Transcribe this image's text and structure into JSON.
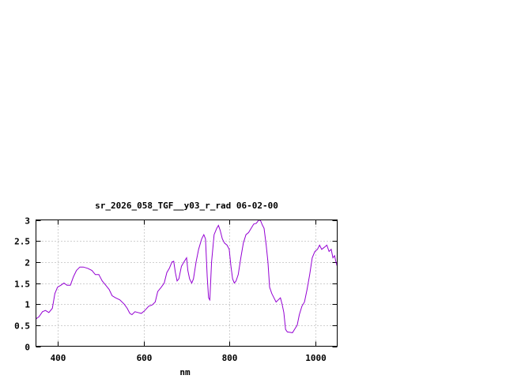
{
  "chart_data": {
    "type": "line",
    "title": "sr_2026_058_TGF__y03_r_rad 06-02-00",
    "xlabel": "nm",
    "ylabel": "",
    "xlim": [
      350,
      1050
    ],
    "ylim": [
      0,
      3
    ],
    "grid": true,
    "legend": "none",
    "x_ticks": [
      400,
      600,
      800,
      1000
    ],
    "x_tick_labels": [
      "400",
      "600",
      "800",
      "1000"
    ],
    "y_ticks": [
      0,
      0.5,
      1,
      1.5,
      2,
      2.5,
      3
    ],
    "y_tick_labels": [
      "0",
      "0.5",
      "1",
      "1.5",
      "2",
      "2.5",
      "3"
    ],
    "series": [
      {
        "name": "",
        "color": "#9400d3",
        "points": [
          [
            350,
            0.65
          ],
          [
            357,
            0.7
          ],
          [
            365,
            0.82
          ],
          [
            372,
            0.85
          ],
          [
            380,
            0.8
          ],
          [
            388,
            0.9
          ],
          [
            394,
            1.25
          ],
          [
            400,
            1.4
          ],
          [
            408,
            1.45
          ],
          [
            415,
            1.5
          ],
          [
            422,
            1.45
          ],
          [
            430,
            1.45
          ],
          [
            437,
            1.65
          ],
          [
            444,
            1.8
          ],
          [
            452,
            1.88
          ],
          [
            460,
            1.88
          ],
          [
            470,
            1.85
          ],
          [
            480,
            1.8
          ],
          [
            488,
            1.7
          ],
          [
            496,
            1.7
          ],
          [
            504,
            1.55
          ],
          [
            512,
            1.45
          ],
          [
            520,
            1.35
          ],
          [
            527,
            1.2
          ],
          [
            535,
            1.15
          ],
          [
            545,
            1.1
          ],
          [
            555,
            1.0
          ],
          [
            562,
            0.9
          ],
          [
            568,
            0.78
          ],
          [
            573,
            0.75
          ],
          [
            580,
            0.82
          ],
          [
            587,
            0.8
          ],
          [
            595,
            0.78
          ],
          [
            603,
            0.85
          ],
          [
            612,
            0.95
          ],
          [
            620,
            0.98
          ],
          [
            627,
            1.05
          ],
          [
            633,
            1.3
          ],
          [
            641,
            1.4
          ],
          [
            648,
            1.5
          ],
          [
            654,
            1.75
          ],
          [
            660,
            1.85
          ],
          [
            666,
            2.0
          ],
          [
            670,
            2.02
          ],
          [
            674,
            1.75
          ],
          [
            678,
            1.55
          ],
          [
            682,
            1.6
          ],
          [
            688,
            1.9
          ],
          [
            694,
            2.0
          ],
          [
            700,
            2.1
          ],
          [
            703,
            1.8
          ],
          [
            707,
            1.6
          ],
          [
            712,
            1.5
          ],
          [
            716,
            1.6
          ],
          [
            722,
            2.0
          ],
          [
            728,
            2.3
          ],
          [
            735,
            2.55
          ],
          [
            740,
            2.65
          ],
          [
            744,
            2.55
          ],
          [
            748,
            1.65
          ],
          [
            751,
            1.15
          ],
          [
            754,
            1.1
          ],
          [
            758,
            2.0
          ],
          [
            764,
            2.65
          ],
          [
            770,
            2.8
          ],
          [
            774,
            2.87
          ],
          [
            778,
            2.75
          ],
          [
            783,
            2.55
          ],
          [
            788,
            2.45
          ],
          [
            794,
            2.4
          ],
          [
            799,
            2.3
          ],
          [
            803,
            1.9
          ],
          [
            807,
            1.6
          ],
          [
            811,
            1.5
          ],
          [
            815,
            1.55
          ],
          [
            820,
            1.7
          ],
          [
            826,
            2.1
          ],
          [
            832,
            2.45
          ],
          [
            838,
            2.65
          ],
          [
            844,
            2.7
          ],
          [
            850,
            2.8
          ],
          [
            856,
            2.9
          ],
          [
            862,
            2.92
          ],
          [
            868,
            3.0
          ],
          [
            872,
            2.98
          ],
          [
            876,
            2.88
          ],
          [
            880,
            2.8
          ],
          [
            885,
            2.4
          ],
          [
            889,
            2.0
          ],
          [
            893,
            1.4
          ],
          [
            898,
            1.25
          ],
          [
            903,
            1.15
          ],
          [
            908,
            1.05
          ],
          [
            913,
            1.1
          ],
          [
            918,
            1.15
          ],
          [
            922,
            1.0
          ],
          [
            926,
            0.8
          ],
          [
            930,
            0.4
          ],
          [
            934,
            0.34
          ],
          [
            940,
            0.33
          ],
          [
            946,
            0.32
          ],
          [
            952,
            0.42
          ],
          [
            957,
            0.5
          ],
          [
            962,
            0.75
          ],
          [
            968,
            0.95
          ],
          [
            974,
            1.05
          ],
          [
            980,
            1.35
          ],
          [
            986,
            1.7
          ],
          [
            992,
            2.1
          ],
          [
            998,
            2.25
          ],
          [
            1004,
            2.3
          ],
          [
            1009,
            2.4
          ],
          [
            1014,
            2.3
          ],
          [
            1020,
            2.35
          ],
          [
            1026,
            2.4
          ],
          [
            1031,
            2.25
          ],
          [
            1036,
            2.3
          ],
          [
            1040,
            2.1
          ],
          [
            1044,
            2.15
          ],
          [
            1047,
            2.0
          ],
          [
            1050,
            1.9
          ]
        ]
      }
    ]
  }
}
